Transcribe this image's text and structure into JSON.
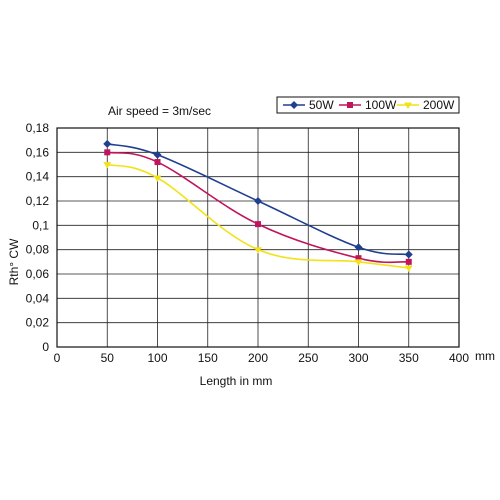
{
  "chart_data": {
    "type": "line",
    "annotation": "Air speed = 3m/sec",
    "xlabel": "Length in mm",
    "x_unit": "mm",
    "ylabel": "Rth° CW",
    "xlim": [
      0,
      400
    ],
    "ylim": [
      0,
      0.18
    ],
    "x_ticks": [
      "0",
      "50",
      "100",
      "150",
      "200",
      "250",
      "300",
      "350",
      "400"
    ],
    "x_tick_values": [
      0,
      50,
      100,
      150,
      200,
      250,
      300,
      350,
      400
    ],
    "y_ticks": [
      "0",
      "0,02",
      "0,04",
      "0,06",
      "0,08",
      "0,1",
      "0,12",
      "0,14",
      "0,16",
      "0,18"
    ],
    "y_tick_values": [
      0,
      0.02,
      0.04,
      0.06,
      0.08,
      0.1,
      0.12,
      0.14,
      0.16,
      0.18
    ],
    "grid": true,
    "legend_position": "top-right",
    "x": [
      50,
      100,
      200,
      300,
      350
    ],
    "series": [
      {
        "name": "50W",
        "color": "#1f3f8f",
        "marker": "diamond",
        "values": [
          0.167,
          0.158,
          0.12,
          0.082,
          0.076
        ]
      },
      {
        "name": "100W",
        "color": "#c0145c",
        "marker": "square",
        "values": [
          0.16,
          0.152,
          0.101,
          0.073,
          0.07
        ]
      },
      {
        "name": "200W",
        "color": "#f2e21a",
        "marker": "triangle",
        "values": [
          0.15,
          0.139,
          0.08,
          0.07,
          0.065
        ]
      }
    ]
  }
}
